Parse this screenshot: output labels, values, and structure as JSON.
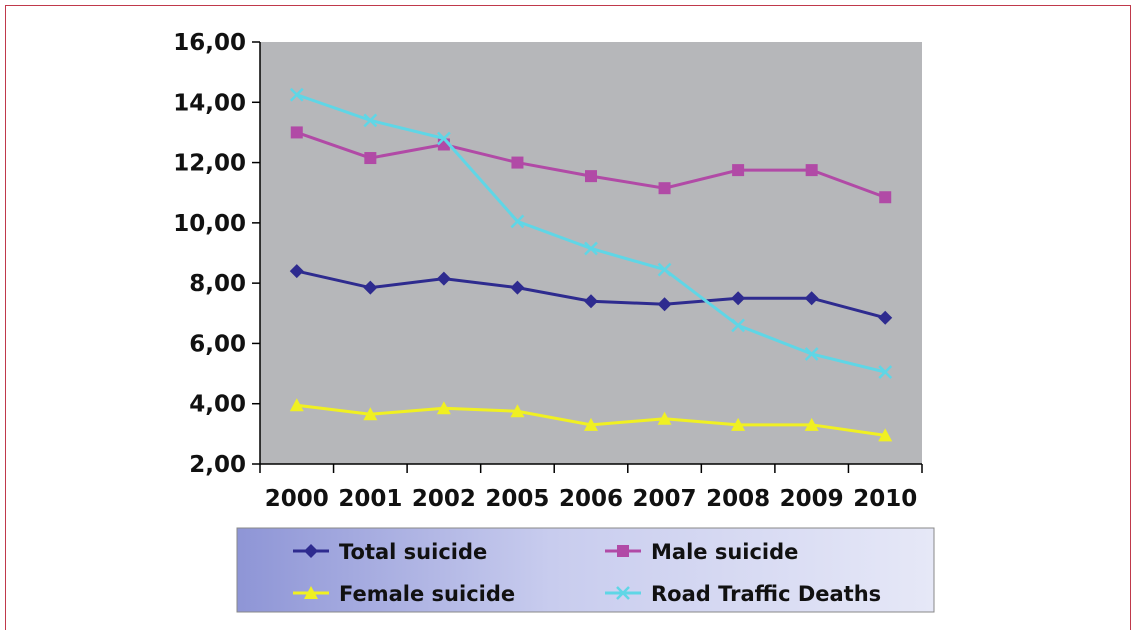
{
  "chart_data": {
    "type": "line",
    "categories": [
      "2000",
      "2001",
      "2002",
      "2005",
      "2006",
      "2007",
      "2008",
      "2009",
      "2010"
    ],
    "ylim": [
      2,
      16
    ],
    "yticks": [
      "2,00",
      "4,00",
      "6,00",
      "8,00",
      "10,00",
      "12,00",
      "14,00",
      "16,00"
    ],
    "grid": false,
    "legend_position": "bottom",
    "series": [
      {
        "name": "Total suicide",
        "color": "#2e2b8f",
        "marker": "diamond",
        "values": [
          8.4,
          7.85,
          8.15,
          7.85,
          7.4,
          7.3,
          7.5,
          7.5,
          6.85
        ]
      },
      {
        "name": "Male suicide",
        "color": "#b14aa6",
        "marker": "square",
        "values": [
          13.0,
          12.15,
          12.6,
          12.0,
          11.55,
          11.15,
          11.75,
          11.75,
          10.85
        ]
      },
      {
        "name": "Female suicide",
        "color": "#f0f022",
        "marker": "triangle",
        "values": [
          3.95,
          3.65,
          3.85,
          3.75,
          3.3,
          3.5,
          3.3,
          3.3,
          2.95
        ]
      },
      {
        "name": "Road Traffic Deaths",
        "color": "#5fd6e6",
        "marker": "x",
        "values": [
          14.25,
          13.4,
          12.8,
          10.05,
          9.15,
          8.45,
          6.6,
          5.65,
          5.05
        ]
      }
    ]
  }
}
